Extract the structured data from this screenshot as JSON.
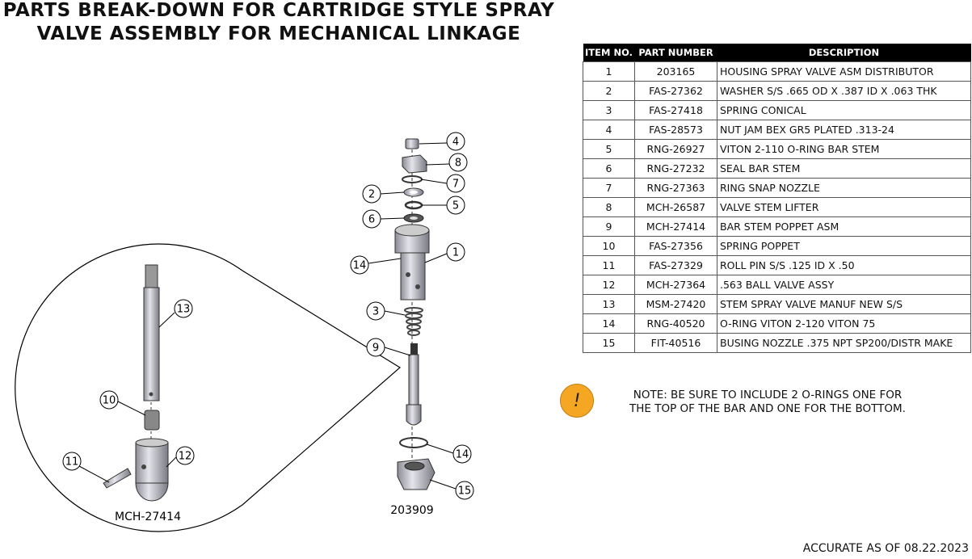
{
  "title": {
    "line1": "PARTS BREAK-DOWN FOR CARTRIDGE STYLE SPRAY",
    "line2": "VALVE ASSEMBLY  FOR MECHANICAL LINKAGE"
  },
  "table": {
    "headers": [
      "ITEM NO.",
      "PART NUMBER",
      "DESCRIPTION"
    ],
    "rows": [
      [
        "1",
        "203165",
        "HOUSING SPRAY VALVE ASM DISTRIBUTOR"
      ],
      [
        "2",
        "FAS-27362",
        "WASHER S/S .665 OD X .387 ID X .063 THK"
      ],
      [
        "3",
        "FAS-27418",
        "SPRING CONICAL"
      ],
      [
        "4",
        "FAS-28573",
        "NUT JAM BEX GR5 PLATED .313-24"
      ],
      [
        "5",
        "RNG-26927",
        "VITON 2-110 O-RING BAR STEM"
      ],
      [
        "6",
        "RNG-27232",
        "SEAL BAR STEM"
      ],
      [
        "7",
        "RNG-27363",
        "RING SNAP NOZZLE"
      ],
      [
        "8",
        "MCH-26587",
        "VALVE STEM LIFTER"
      ],
      [
        "9",
        "MCH-27414",
        "BAR STEM POPPET ASM"
      ],
      [
        "10",
        "FAS-27356",
        "SPRING POPPET"
      ],
      [
        "11",
        "FAS-27329",
        "ROLL PIN S/S .125 ID X .50"
      ],
      [
        "12",
        "MCH-27364",
        ".563 BALL VALVE ASSY"
      ],
      [
        "13",
        "MSM-27420",
        "STEM SPRAY VALVE MANUF NEW S/S"
      ],
      [
        "14",
        "RNG-40520",
        "O-RING VITON 2-120 VITON 75"
      ],
      [
        "15",
        "FIT-40516",
        "BUSING NOZZLE .375 NPT SP200/DISTR MAKE"
      ]
    ]
  },
  "note": {
    "icon": "exclamation-icon",
    "icon_text": "!",
    "color": "#f5a623",
    "line1": "NOTE: BE SURE TO INCLUDE 2 O-RINGS ONE FOR",
    "line2": "THE TOP OF THE BAR AND ONE FOR THE BOTTOM."
  },
  "footer": "ACCURATE AS OF 08.22.2023",
  "diagram": {
    "callouts": [
      "4",
      "8",
      "7",
      "2",
      "5",
      "6",
      "1",
      "14",
      "3",
      "9",
      "14",
      "15",
      "13",
      "10",
      "11",
      "12"
    ],
    "labels": {
      "detail": "MCH-27414",
      "assembly": "203909"
    }
  }
}
